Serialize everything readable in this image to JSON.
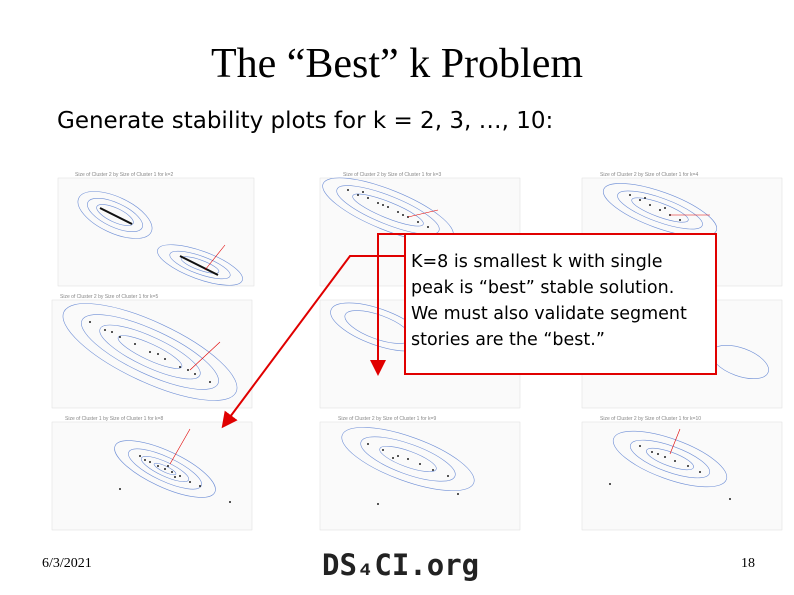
{
  "slide": {
    "title": "The “Best” k Problem",
    "subtitle": "Generate stability plots for k = 2, 3, …, 10:",
    "callout": {
      "lines": [
        "K=8 is smallest k with single",
        "peak is “best” stable solution.",
        "We must also validate segment",
        "stories are the “best.”"
      ],
      "border_color": "#e00000"
    },
    "footer": {
      "date": "6/3/2021",
      "brand": "DS₄CI.org",
      "page": "18"
    }
  },
  "colors": {
    "contour": "#6f8fd6",
    "points": "#222222",
    "arrow": "#e00000"
  }
}
